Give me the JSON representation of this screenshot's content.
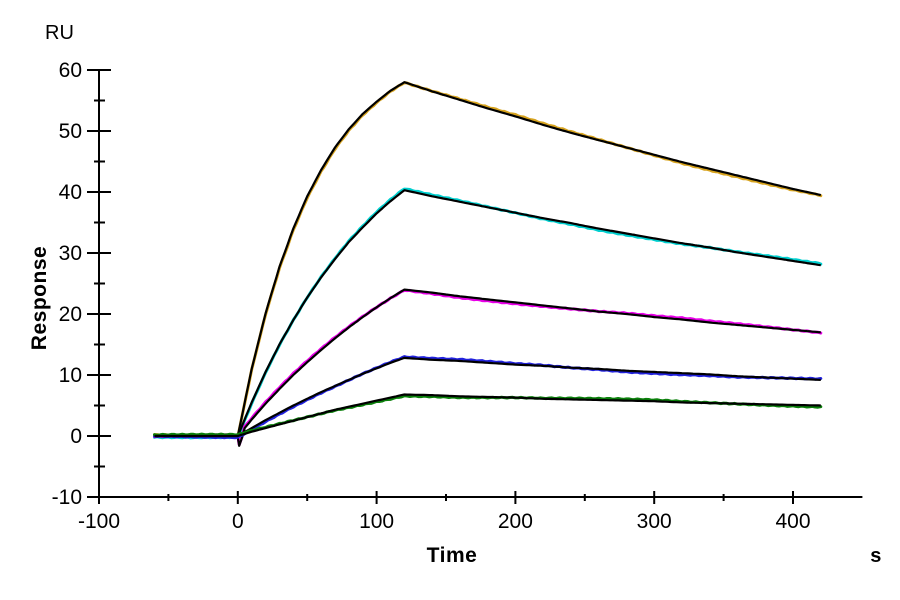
{
  "chart": {
    "y_unit_label": "RU",
    "ylabel": "Response",
    "xlabel": "Time",
    "x_unit_label": "s"
  },
  "chart_data": {
    "type": "line",
    "title": "",
    "description": "SPR sensorgram: five concentration traces (colored) overlaid with black 1:1 binding kinetic fit lines; association 0-120 s, dissociation 120-420 s",
    "xlabel": "Time",
    "x_unit": "s",
    "ylabel": "Response",
    "y_unit": "RU",
    "xlim": [
      -100,
      450
    ],
    "ylim": [
      -10,
      60
    ],
    "x_major_ticks": [
      -100,
      0,
      100,
      200,
      300,
      400
    ],
    "x_minor_ticks": [
      -50,
      50,
      150,
      250,
      350
    ],
    "y_major_ticks": [
      60,
      50,
      40,
      30,
      20,
      10,
      0,
      -10
    ],
    "y_minor_ticks": [
      55,
      45,
      35,
      25,
      15,
      5,
      -5
    ],
    "grid": false,
    "legend": "none",
    "fit_color": "#000000",
    "series": [
      {
        "name": "trace-1-gold",
        "color": "#D7A31E",
        "peak_ru": 58.0,
        "end_ru": 39.5,
        "points": [
          [
            -60,
            0
          ],
          [
            -50,
            0
          ],
          [
            -40,
            0
          ],
          [
            -30,
            0
          ],
          [
            -20,
            0
          ],
          [
            -10,
            0
          ],
          [
            0,
            0
          ],
          [
            10,
            11
          ],
          [
            20,
            20.1
          ],
          [
            30,
            27.7
          ],
          [
            40,
            34
          ],
          [
            50,
            39.3
          ],
          [
            60,
            43.6
          ],
          [
            70,
            47.3
          ],
          [
            80,
            50.3
          ],
          [
            90,
            52.8
          ],
          [
            100,
            54.8
          ],
          [
            110,
            56.6
          ],
          [
            120,
            58
          ],
          [
            140,
            56.5
          ],
          [
            160,
            55.1
          ],
          [
            180,
            53.7
          ],
          [
            200,
            52.4
          ],
          [
            220,
            51
          ],
          [
            240,
            49.7
          ],
          [
            260,
            48.5
          ],
          [
            280,
            47.3
          ],
          [
            300,
            46.1
          ],
          [
            320,
            44.9
          ],
          [
            340,
            43.8
          ],
          [
            360,
            42.7
          ],
          [
            380,
            41.6
          ],
          [
            400,
            40.5
          ],
          [
            420,
            39.5
          ]
        ]
      },
      {
        "name": "trace-2-cyan",
        "color": "#00CFCF",
        "peak_ru": 40.3,
        "end_ru": 28.0,
        "points": [
          [
            -60,
            0
          ],
          [
            -50,
            0
          ],
          [
            -40,
            0
          ],
          [
            -30,
            0
          ],
          [
            -20,
            0
          ],
          [
            -10,
            0
          ],
          [
            0,
            0
          ],
          [
            10,
            5.5
          ],
          [
            20,
            10.5
          ],
          [
            30,
            15
          ],
          [
            40,
            19
          ],
          [
            50,
            22.7
          ],
          [
            60,
            26
          ],
          [
            70,
            29
          ],
          [
            80,
            31.8
          ],
          [
            90,
            34.2
          ],
          [
            100,
            36.5
          ],
          [
            110,
            38.5
          ],
          [
            120,
            40.3
          ],
          [
            140,
            39.3
          ],
          [
            160,
            38.4
          ],
          [
            180,
            37.5
          ],
          [
            200,
            36.6
          ],
          [
            220,
            35.7
          ],
          [
            240,
            34.9
          ],
          [
            260,
            34
          ],
          [
            280,
            33.2
          ],
          [
            300,
            32.4
          ],
          [
            320,
            31.6
          ],
          [
            340,
            30.9
          ],
          [
            360,
            30.1
          ],
          [
            380,
            29.4
          ],
          [
            400,
            28.7
          ],
          [
            420,
            28
          ]
        ]
      },
      {
        "name": "trace-3-magenta",
        "color": "#E800E8",
        "peak_ru": 24.0,
        "end_ru": 17.0,
        "points": [
          [
            -60,
            0
          ],
          [
            -50,
            0
          ],
          [
            -40,
            0
          ],
          [
            -30,
            0
          ],
          [
            -20,
            0
          ],
          [
            -10,
            0
          ],
          [
            0,
            -0.2
          ],
          [
            1,
            -1.6
          ],
          [
            3,
            -0.3
          ],
          [
            5,
            1.3
          ],
          [
            10,
            2.7
          ],
          [
            20,
            5.3
          ],
          [
            30,
            7.7
          ],
          [
            40,
            10
          ],
          [
            50,
            12.1
          ],
          [
            60,
            14.1
          ],
          [
            70,
            16
          ],
          [
            80,
            17.8
          ],
          [
            90,
            19.5
          ],
          [
            100,
            21.1
          ],
          [
            110,
            22.6
          ],
          [
            120,
            24
          ],
          [
            140,
            23.5
          ],
          [
            160,
            22.9
          ],
          [
            180,
            22.4
          ],
          [
            200,
            21.9
          ],
          [
            220,
            21.4
          ],
          [
            240,
            20.9
          ],
          [
            260,
            20.4
          ],
          [
            280,
            20
          ],
          [
            300,
            19.5
          ],
          [
            320,
            19.1
          ],
          [
            340,
            18.6
          ],
          [
            360,
            18.2
          ],
          [
            380,
            17.8
          ],
          [
            400,
            17.4
          ],
          [
            420,
            17
          ]
        ]
      },
      {
        "name": "trace-4-blue",
        "color": "#2222DD",
        "peak_ru": 12.8,
        "end_ru": 9.2,
        "points": [
          [
            -60,
            0
          ],
          [
            -50,
            0
          ],
          [
            -40,
            0
          ],
          [
            -30,
            0
          ],
          [
            -20,
            0
          ],
          [
            -10,
            0
          ],
          [
            0,
            0
          ],
          [
            10,
            1.3
          ],
          [
            20,
            2.6
          ],
          [
            30,
            3.8
          ],
          [
            40,
            5
          ],
          [
            50,
            6.1
          ],
          [
            60,
            7.2
          ],
          [
            70,
            8.2
          ],
          [
            80,
            9.2
          ],
          [
            90,
            10.2
          ],
          [
            100,
            11.1
          ],
          [
            110,
            12
          ],
          [
            120,
            12.8
          ],
          [
            140,
            12.5
          ],
          [
            160,
            12.3
          ],
          [
            180,
            12
          ],
          [
            200,
            11.7
          ],
          [
            220,
            11.5
          ],
          [
            240,
            11.2
          ],
          [
            260,
            11
          ],
          [
            280,
            10.7
          ],
          [
            300,
            10.5
          ],
          [
            320,
            10.3
          ],
          [
            340,
            10.1
          ],
          [
            360,
            9.8
          ],
          [
            380,
            9.6
          ],
          [
            400,
            9.4
          ],
          [
            420,
            9.2
          ]
        ]
      },
      {
        "name": "trace-5-green",
        "color": "#0B800B",
        "peak_ru": 6.8,
        "end_ru": 5.0,
        "points": [
          [
            -60,
            0
          ],
          [
            -50,
            0
          ],
          [
            -40,
            0
          ],
          [
            -30,
            0
          ],
          [
            -20,
            0
          ],
          [
            -10,
            0
          ],
          [
            0,
            0
          ],
          [
            10,
            0.7
          ],
          [
            20,
            1.3
          ],
          [
            30,
            1.9
          ],
          [
            40,
            2.5
          ],
          [
            50,
            3.1
          ],
          [
            60,
            3.7
          ],
          [
            70,
            4.3
          ],
          [
            80,
            4.8
          ],
          [
            90,
            5.3
          ],
          [
            100,
            5.8
          ],
          [
            110,
            6.3
          ],
          [
            120,
            6.8
          ],
          [
            140,
            6.7
          ],
          [
            160,
            6.5
          ],
          [
            180,
            6.4
          ],
          [
            200,
            6.3
          ],
          [
            220,
            6.1
          ],
          [
            240,
            6
          ],
          [
            260,
            5.9
          ],
          [
            280,
            5.8
          ],
          [
            300,
            5.7
          ],
          [
            320,
            5.5
          ],
          [
            340,
            5.4
          ],
          [
            360,
            5.3
          ],
          [
            380,
            5.2
          ],
          [
            400,
            5.1
          ],
          [
            420,
            5
          ]
        ]
      }
    ]
  }
}
